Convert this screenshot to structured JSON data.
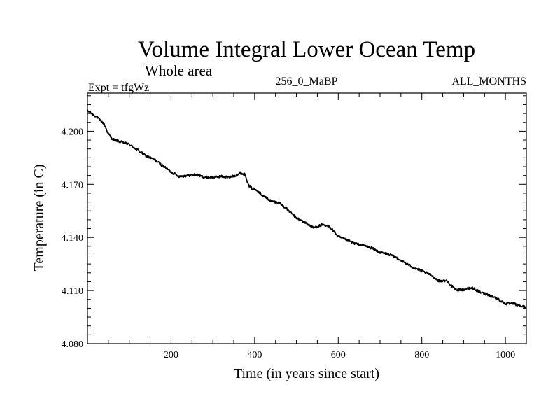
{
  "chart_data": {
    "type": "line",
    "title": "Volume Integral Lower Ocean Temp",
    "subtitle": "Whole area",
    "expt_label": "Expt = tfgWz",
    "center_label": "256_0_MaBP",
    "months_label": "ALL_MONTHS",
    "xlabel": "Time (in years since start)",
    "ylabel": "Temperature (in C)",
    "xlim": [
      0,
      1050
    ],
    "ylim": [
      4.08,
      4.2215
    ],
    "x_ticks": [
      200,
      400,
      600,
      800,
      1000
    ],
    "x_tick_labels": [
      "200",
      "400",
      "600",
      "800",
      "1000"
    ],
    "y_ticks": [
      4.08,
      4.11,
      4.14,
      4.17,
      4.2
    ],
    "y_tick_labels": [
      "4.080",
      "4.110",
      "4.140",
      "4.170",
      "4.200"
    ],
    "series": [
      {
        "name": "Volume integral lower ocean temperature",
        "color": "#000000",
        "x": [
          0,
          20,
          40,
          50,
          60,
          80,
          100,
          120,
          140,
          160,
          180,
          200,
          220,
          240,
          260,
          280,
          300,
          320,
          340,
          360,
          365,
          370,
          378,
          385,
          395,
          405,
          420,
          440,
          460,
          480,
          500,
          520,
          540,
          560,
          580,
          600,
          620,
          640,
          660,
          680,
          700,
          720,
          740,
          760,
          780,
          800,
          820,
          840,
          860,
          880,
          900,
          920,
          940,
          960,
          980,
          1000,
          1020,
          1040,
          1050
        ],
        "values": [
          4.2115,
          4.2085,
          4.204,
          4.1985,
          4.1955,
          4.194,
          4.1925,
          4.1895,
          4.186,
          4.184,
          4.1805,
          4.177,
          4.1745,
          4.175,
          4.1755,
          4.174,
          4.174,
          4.1745,
          4.174,
          4.1755,
          4.1765,
          4.176,
          4.1755,
          4.1695,
          4.1675,
          4.167,
          4.1635,
          4.1605,
          4.1595,
          4.1555,
          4.151,
          4.1485,
          4.1455,
          4.147,
          4.146,
          4.1405,
          4.1385,
          4.1365,
          4.1355,
          4.134,
          4.1315,
          4.1305,
          4.1285,
          4.1255,
          4.123,
          4.121,
          4.119,
          4.1155,
          4.1155,
          4.1105,
          4.1105,
          4.1115,
          4.109,
          4.1075,
          4.1055,
          4.1025,
          4.1025,
          4.101,
          4.1005
        ]
      }
    ]
  }
}
